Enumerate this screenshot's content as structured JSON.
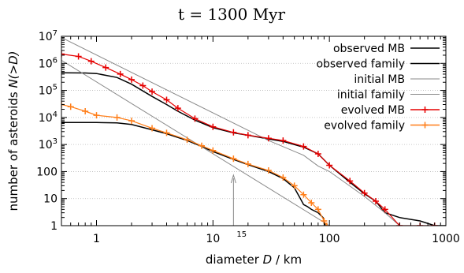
{
  "chart_data": {
    "type": "line",
    "title": "t = 1300 Myr",
    "xlabel": "diameter D / km",
    "ylabel": "number of asteroids N(>D)",
    "xscale": "log",
    "yscale": "log",
    "xlim": [
      0.5,
      1000
    ],
    "ylim": [
      1,
      10000000
    ],
    "grid": "y dotted",
    "legend": "top-right",
    "xticks": [
      {
        "value": 1,
        "label": "1"
      },
      {
        "value": 10,
        "label": "10"
      },
      {
        "value": 100,
        "label": "100"
      },
      {
        "value": 1000,
        "label": "1000"
      }
    ],
    "yticks": [
      {
        "value": 1,
        "label": "1"
      },
      {
        "value": 10,
        "label": "10"
      },
      {
        "value": 100,
        "label": "100"
      },
      {
        "value": 1000,
        "label": "10^3"
      },
      {
        "value": 10000,
        "label": "10^4"
      },
      {
        "value": 100000,
        "label": "10^5"
      },
      {
        "value": 1000000,
        "label": "10^6"
      },
      {
        "value": 10000000,
        "label": "10^7"
      }
    ],
    "annotation": {
      "label": "15",
      "x": 15
    },
    "series": [
      {
        "name": "observed MB",
        "color": "#000000",
        "style": "line",
        "points": [
          [
            0.5,
            450000
          ],
          [
            0.8,
            440000
          ],
          [
            1.0,
            420000
          ],
          [
            1.5,
            300000
          ],
          [
            2,
            170000
          ],
          [
            3,
            60000
          ],
          [
            4,
            30000
          ],
          [
            5,
            17000
          ],
          [
            7,
            8000
          ],
          [
            10,
            4200
          ],
          [
            15,
            2700
          ],
          [
            20,
            2200
          ],
          [
            30,
            1600
          ],
          [
            40,
            1300
          ],
          [
            60,
            800
          ],
          [
            80,
            450
          ],
          [
            100,
            170
          ],
          [
            150,
            40
          ],
          [
            200,
            15
          ],
          [
            250,
            8
          ],
          [
            300,
            3
          ],
          [
            400,
            2
          ],
          [
            600,
            1.5
          ],
          [
            800,
            1
          ],
          [
            1000,
            1
          ]
        ]
      },
      {
        "name": "observed family",
        "color": "#000000",
        "style": "line",
        "points": [
          [
            0.5,
            6500
          ],
          [
            1,
            6500
          ],
          [
            1.5,
            6300
          ],
          [
            2,
            5500
          ],
          [
            3,
            3500
          ],
          [
            4,
            2500
          ],
          [
            6,
            1400
          ],
          [
            8,
            850
          ],
          [
            10,
            550
          ],
          [
            15,
            280
          ],
          [
            20,
            180
          ],
          [
            30,
            100
          ],
          [
            40,
            55
          ],
          [
            50,
            25
          ],
          [
            55,
            12
          ],
          [
            60,
            6
          ],
          [
            65,
            5
          ],
          [
            70,
            4
          ],
          [
            80,
            3
          ],
          [
            88,
            2
          ],
          [
            92,
            1
          ]
        ]
      },
      {
        "name": "initial MB",
        "color": "#888888",
        "style": "line",
        "points": [
          [
            0.5,
            9000000
          ],
          [
            30,
            1400
          ],
          [
            60,
            400
          ],
          [
            80,
            160
          ],
          [
            100,
            100
          ],
          [
            200,
            12
          ],
          [
            300,
            3
          ],
          [
            400,
            1
          ]
        ]
      },
      {
        "name": "initial family",
        "color": "#888888",
        "style": "line",
        "points": [
          [
            0.5,
            1300000
          ],
          [
            100,
            1
          ]
        ]
      },
      {
        "name": "evolved MB",
        "color": "#e60000",
        "style": "line-points",
        "points": [
          [
            0.5,
            2200000
          ],
          [
            0.7,
            1800000
          ],
          [
            0.9,
            1200000
          ],
          [
            1.2,
            700000
          ],
          [
            1.6,
            400000
          ],
          [
            2,
            250000
          ],
          [
            2.5,
            150000
          ],
          [
            3,
            90000
          ],
          [
            4,
            45000
          ],
          [
            5,
            22000
          ],
          [
            7,
            9000
          ],
          [
            10,
            4500
          ],
          [
            15,
            2800
          ],
          [
            20,
            2200
          ],
          [
            30,
            1700
          ],
          [
            40,
            1400
          ],
          [
            60,
            850
          ],
          [
            80,
            450
          ],
          [
            100,
            170
          ],
          [
            150,
            45
          ],
          [
            200,
            16
          ],
          [
            250,
            8
          ],
          [
            300,
            4
          ],
          [
            400,
            1
          ],
          [
            600,
            1
          ],
          [
            800,
            1
          ]
        ]
      },
      {
        "name": "evolved family",
        "color": "#ff7f1a",
        "style": "line-points",
        "points": [
          [
            0.5,
            30000
          ],
          [
            0.6,
            25000
          ],
          [
            0.8,
            17000
          ],
          [
            1,
            12000
          ],
          [
            1.5,
            10000
          ],
          [
            2,
            7500
          ],
          [
            3,
            4000
          ],
          [
            4,
            2700
          ],
          [
            6,
            1500
          ],
          [
            8,
            900
          ],
          [
            10,
            600
          ],
          [
            15,
            300
          ],
          [
            20,
            190
          ],
          [
            30,
            110
          ],
          [
            40,
            60
          ],
          [
            50,
            30
          ],
          [
            60,
            14
          ],
          [
            70,
            7
          ],
          [
            80,
            4
          ],
          [
            90,
            1.5
          ],
          [
            95,
            1
          ]
        ]
      }
    ]
  }
}
